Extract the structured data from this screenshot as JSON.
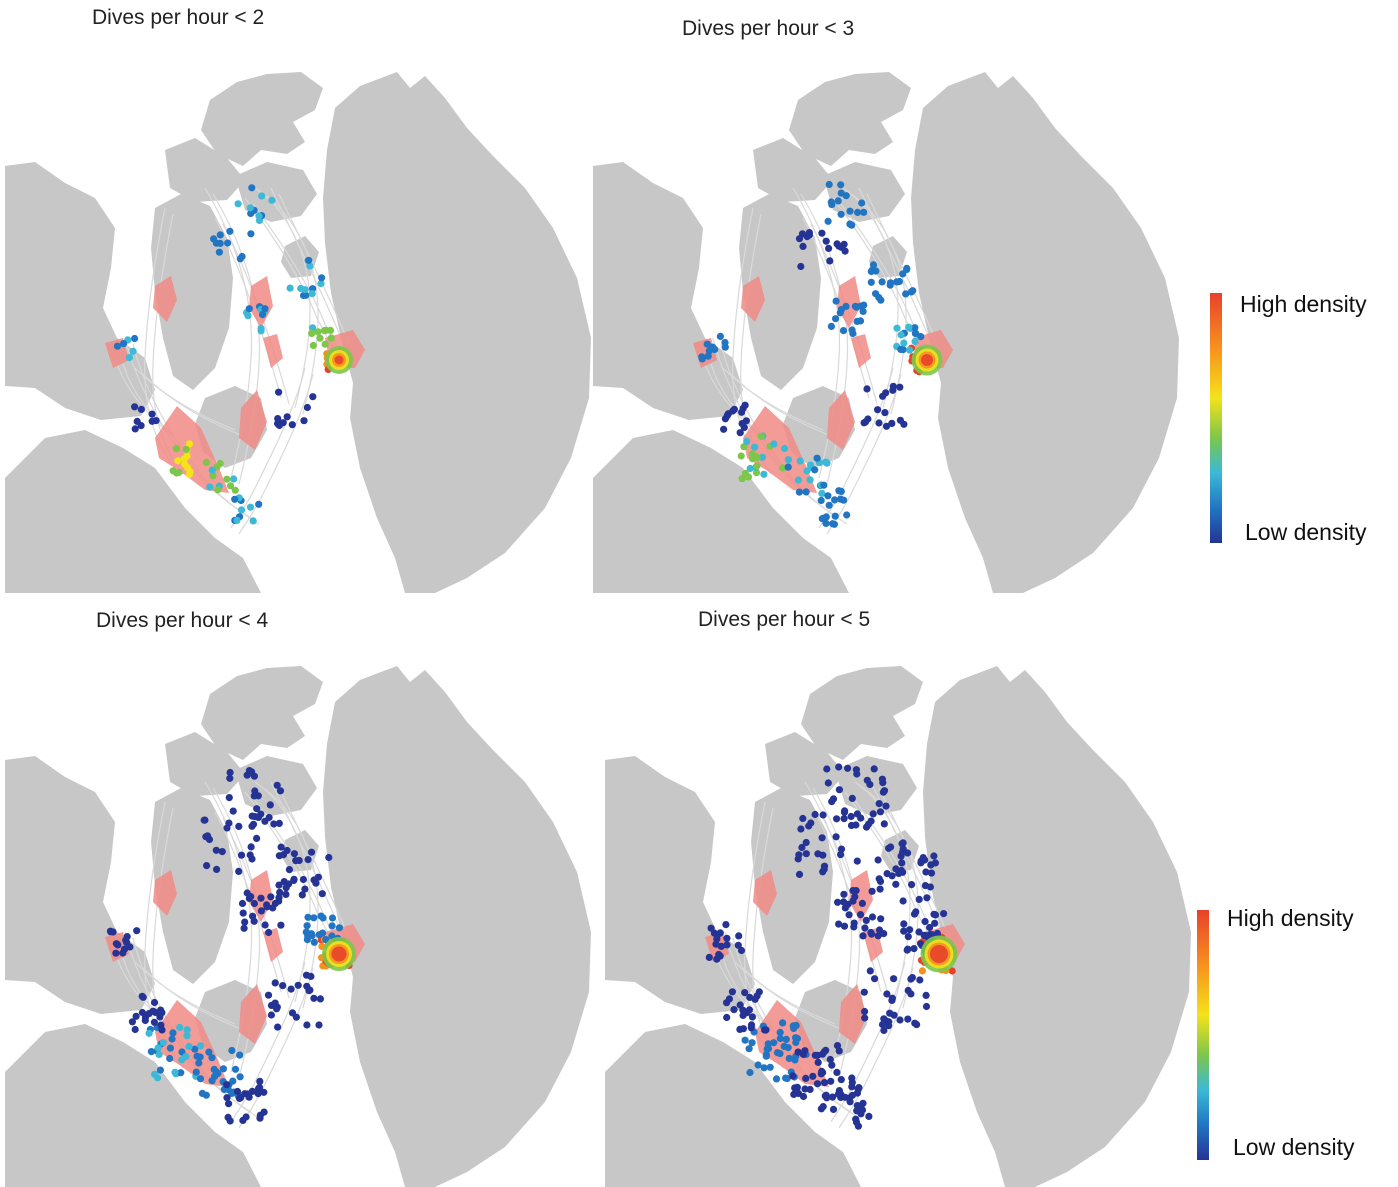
{
  "panels": [
    {
      "title": "Dives per hour < 2"
    },
    {
      "title": "Dives per hour < 3"
    },
    {
      "title": "Dives per hour < 4"
    },
    {
      "title": "Dives per hour < 5"
    }
  ],
  "legends": [
    {
      "high_label": "High density",
      "low_label": "Low density"
    },
    {
      "high_label": "High density",
      "low_label": "Low density"
    }
  ],
  "colors": {
    "land": "#c7c7c7",
    "tracks": "#d9d9d9",
    "polygons": "#f08a85",
    "density_scale": [
      "#253494",
      "#2175c3",
      "#3bb9d6",
      "#7cc64a",
      "#f5e21a",
      "#f7911e",
      "#e8412a"
    ]
  }
}
